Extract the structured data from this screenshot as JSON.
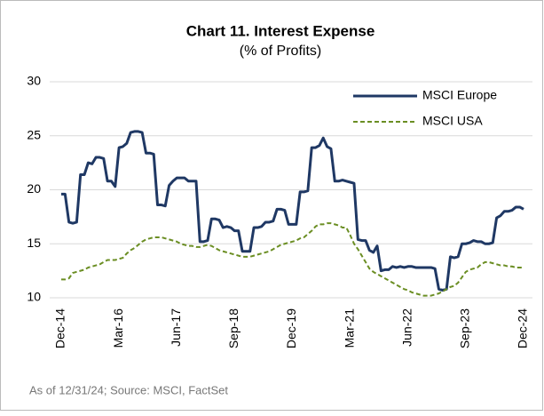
{
  "chart_data": {
    "type": "line",
    "title": "Chart 11. Interest Expense",
    "subtitle": "(% of Profits)",
    "footnote": "As of 12/31/24; Source: MSCI, FactSet",
    "categories": [
      "Dec-14",
      null,
      null,
      null,
      null,
      null,
      null,
      null,
      null,
      null,
      null,
      null,
      null,
      null,
      null,
      "Mar-16",
      null,
      null,
      null,
      null,
      null,
      null,
      null,
      null,
      null,
      null,
      null,
      null,
      null,
      null,
      "Jun-17",
      null,
      null,
      null,
      null,
      null,
      null,
      null,
      null,
      null,
      null,
      null,
      null,
      null,
      null,
      "Sep-18",
      null,
      null,
      null,
      null,
      null,
      null,
      null,
      null,
      null,
      null,
      null,
      null,
      null,
      null,
      "Dec-19",
      null,
      null,
      null,
      null,
      null,
      null,
      null,
      null,
      null,
      null,
      null,
      null,
      null,
      null,
      "Mar-21",
      null,
      null,
      null,
      null,
      null,
      null,
      null,
      null,
      null,
      null,
      null,
      null,
      null,
      null,
      "Jun-22",
      null,
      null,
      null,
      null,
      null,
      null,
      null,
      null,
      null,
      null,
      null,
      null,
      null,
      null,
      "Sep-23",
      null,
      null,
      null,
      null,
      null,
      null,
      null,
      null,
      null,
      null,
      null,
      null,
      null,
      null,
      "Dec-24"
    ],
    "series": [
      {
        "name": "MSCI Europe",
        "color": "#1f3864",
        "style": "solid",
        "values": [
          19.6,
          19.6,
          17.0,
          16.9,
          17.0,
          21.4,
          21.4,
          22.5,
          22.4,
          23.0,
          23.0,
          22.9,
          20.8,
          20.8,
          20.3,
          23.9,
          24.0,
          24.3,
          25.3,
          25.4,
          25.4,
          25.3,
          23.4,
          23.4,
          23.3,
          18.6,
          18.6,
          18.5,
          20.4,
          20.8,
          21.1,
          21.1,
          21.1,
          20.8,
          20.8,
          20.8,
          15.2,
          15.2,
          15.3,
          17.3,
          17.3,
          17.2,
          16.5,
          16.6,
          16.5,
          16.2,
          16.2,
          14.3,
          14.3,
          14.3,
          16.5,
          16.5,
          16.6,
          17.0,
          17.0,
          17.1,
          18.2,
          18.2,
          18.1,
          16.8,
          16.8,
          16.8,
          19.8,
          19.8,
          19.9,
          23.9,
          23.9,
          24.1,
          24.8,
          24.0,
          23.8,
          20.8,
          20.8,
          20.9,
          20.8,
          20.7,
          20.6,
          15.4,
          15.3,
          15.3,
          14.4,
          14.2,
          14.8,
          12.5,
          12.6,
          12.6,
          12.9,
          12.8,
          12.9,
          12.8,
          12.9,
          12.9,
          12.8,
          12.8,
          12.8,
          12.8,
          12.8,
          12.7,
          10.8,
          10.7,
          10.8,
          13.8,
          13.7,
          13.8,
          15.0,
          15.0,
          15.1,
          15.3,
          15.2,
          15.2,
          15.0,
          15.0,
          15.1,
          17.4,
          17.6,
          18.0,
          18.0,
          18.1,
          18.4,
          18.4,
          18.2
        ]
      },
      {
        "name": "MSCI USA",
        "color": "#6b8e23",
        "style": "dashed",
        "values": [
          11.7,
          11.7,
          11.8,
          12.3,
          12.4,
          12.5,
          12.6,
          12.8,
          12.9,
          13.0,
          13.1,
          13.3,
          13.5,
          13.5,
          13.5,
          13.6,
          13.7,
          14.1,
          14.4,
          14.6,
          14.9,
          15.2,
          15.4,
          15.5,
          15.6,
          15.6,
          15.6,
          15.5,
          15.4,
          15.3,
          15.2,
          15.0,
          14.9,
          14.8,
          14.8,
          14.7,
          14.7,
          14.8,
          14.9,
          14.8,
          14.6,
          14.4,
          14.3,
          14.2,
          14.1,
          14.0,
          13.9,
          13.8,
          13.8,
          13.8,
          13.9,
          14.0,
          14.1,
          14.2,
          14.3,
          14.5,
          14.7,
          14.9,
          15.0,
          15.1,
          15.2,
          15.3,
          15.5,
          15.6,
          15.9,
          16.2,
          16.6,
          16.8,
          16.8,
          16.9,
          16.9,
          16.8,
          16.7,
          16.5,
          16.5,
          15.8,
          15.0,
          14.5,
          13.9,
          13.3,
          12.7,
          12.4,
          12.2,
          12.0,
          11.8,
          11.6,
          11.4,
          11.2,
          11.0,
          10.8,
          10.7,
          10.5,
          10.4,
          10.3,
          10.2,
          10.2,
          10.2,
          10.3,
          10.4,
          10.6,
          10.8,
          11.0,
          11.1,
          11.4,
          11.9,
          12.4,
          12.6,
          12.7,
          12.8,
          13.1,
          13.3,
          13.3,
          13.2,
          13.1,
          13.0,
          13.0,
          12.9,
          12.9,
          12.8,
          12.8,
          12.8
        ]
      }
    ],
    "ylim": [
      10,
      30
    ],
    "yticks": [
      10,
      15,
      20,
      25,
      30
    ],
    "grid": true,
    "legend": "top-right"
  }
}
